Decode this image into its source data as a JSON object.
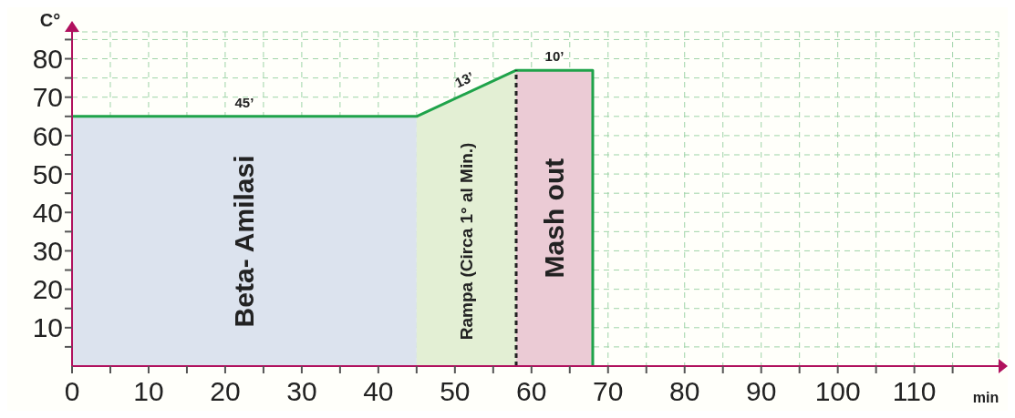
{
  "chart_data": {
    "type": "area",
    "ylabel": "C°",
    "xlabel": "min",
    "xlim": [
      0,
      121
    ],
    "ylim": [
      0,
      87
    ],
    "xticks": [
      0,
      {
        "value": 5,
        "label": null
      },
      10,
      {
        "value": 15,
        "label": null
      },
      20,
      {
        "value": 25,
        "label": null
      },
      30,
      {
        "value": 35,
        "label": null
      },
      40,
      {
        "value": 45,
        "label": null
      },
      50,
      {
        "value": 55,
        "label": null
      },
      60,
      {
        "value": 65,
        "label": null
      },
      70,
      {
        "value": 75,
        "label": null
      },
      80,
      {
        "value": 85,
        "label": null
      },
      90,
      {
        "value": 95,
        "label": null
      },
      100,
      {
        "value": 105,
        "label": null
      },
      110,
      {
        "value": 115,
        "label": null
      }
    ],
    "yticks": [
      {
        "value": 5,
        "label": null
      },
      10,
      {
        "value": 15,
        "label": null
      },
      20,
      {
        "value": 25,
        "label": null
      },
      30,
      {
        "value": 35,
        "label": null
      },
      40,
      {
        "value": 45,
        "label": null
      },
      50,
      {
        "value": 55,
        "label": null
      },
      60,
      {
        "value": 65,
        "label": null
      },
      70,
      {
        "value": 75,
        "label": null
      },
      80,
      {
        "value": 85,
        "label": null
      }
    ],
    "grid": true,
    "series": [
      {
        "name": "Beta- Amilasi",
        "color": "#dce3ee",
        "x": [
          0,
          45
        ],
        "values": [
          65,
          65
        ]
      },
      {
        "name": "Rampa (Circa 1° al Min.)",
        "color": "#e3efd4",
        "x": [
          45,
          58
        ],
        "values": [
          65,
          77
        ]
      },
      {
        "name": "Mash out",
        "color": "#ebcbd5",
        "x": [
          58,
          68
        ],
        "values": [
          77,
          77
        ]
      },
      {
        "type": "line",
        "color": "#1fa34a",
        "x": [
          0,
          45,
          58,
          68,
          68
        ],
        "values": [
          65,
          65,
          77,
          77,
          0
        ]
      }
    ],
    "ref_lines": [
      {
        "axis": "x",
        "value": 58,
        "color": "#222222",
        "line_style": "dashed"
      }
    ],
    "annotations": [
      {
        "text": "45’",
        "x": 22.5,
        "y": 65
      },
      {
        "text": "13’",
        "x": 51.5,
        "y": 71
      },
      {
        "text": "10’",
        "x": 63,
        "y": 77
      }
    ]
  }
}
